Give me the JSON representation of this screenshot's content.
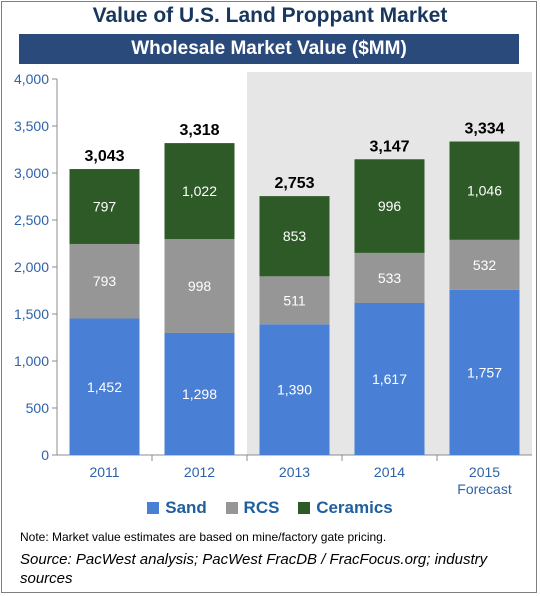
{
  "title": "Value of U.S. Land Proppant Market",
  "subtitle": "Wholesale Market Value ($MM)",
  "chart_data": {
    "type": "bar",
    "stacked": true,
    "categories": [
      "2011",
      "2012",
      "2013",
      "2014",
      "2015"
    ],
    "category_sublabels": [
      "",
      "",
      "",
      "",
      "Forecast"
    ],
    "series": [
      {
        "name": "Sand",
        "color": "#4a7fd6",
        "values": [
          1452,
          1298,
          1390,
          1617,
          1757
        ],
        "labels": [
          "1,452",
          "1,298",
          "1,390",
          "1,617",
          "1,757"
        ]
      },
      {
        "name": "RCS",
        "color": "#969696",
        "values": [
          793,
          998,
          511,
          533,
          532
        ],
        "labels": [
          "793",
          "998",
          "511",
          "533",
          "532"
        ]
      },
      {
        "name": "Ceramics",
        "color": "#2d5a27",
        "values": [
          797,
          1022,
          853,
          996,
          1046
        ],
        "labels": [
          "797",
          "1,022",
          "853",
          "996",
          "1,046"
        ]
      }
    ],
    "totals": [
      "3,043",
      "3,318",
      "2,753",
      "3,147",
      "3,334"
    ],
    "y_ticks": [
      "0",
      "500",
      "1,000",
      "1,500",
      "2,000",
      "2,500",
      "3,000",
      "3,500",
      "4,000"
    ],
    "ylim": [
      0,
      4000
    ],
    "y_tick_step": 500,
    "shaded_from_category": "2013",
    "shade_color": "#e6e6e6",
    "grid": false,
    "legend_position": "bottom"
  },
  "note": "Note: Market value estimates are based on mine/factory gate pricing.",
  "source": "Source: PacWest analysis; PacWest FracDB / FracFocus.org; industry sources"
}
